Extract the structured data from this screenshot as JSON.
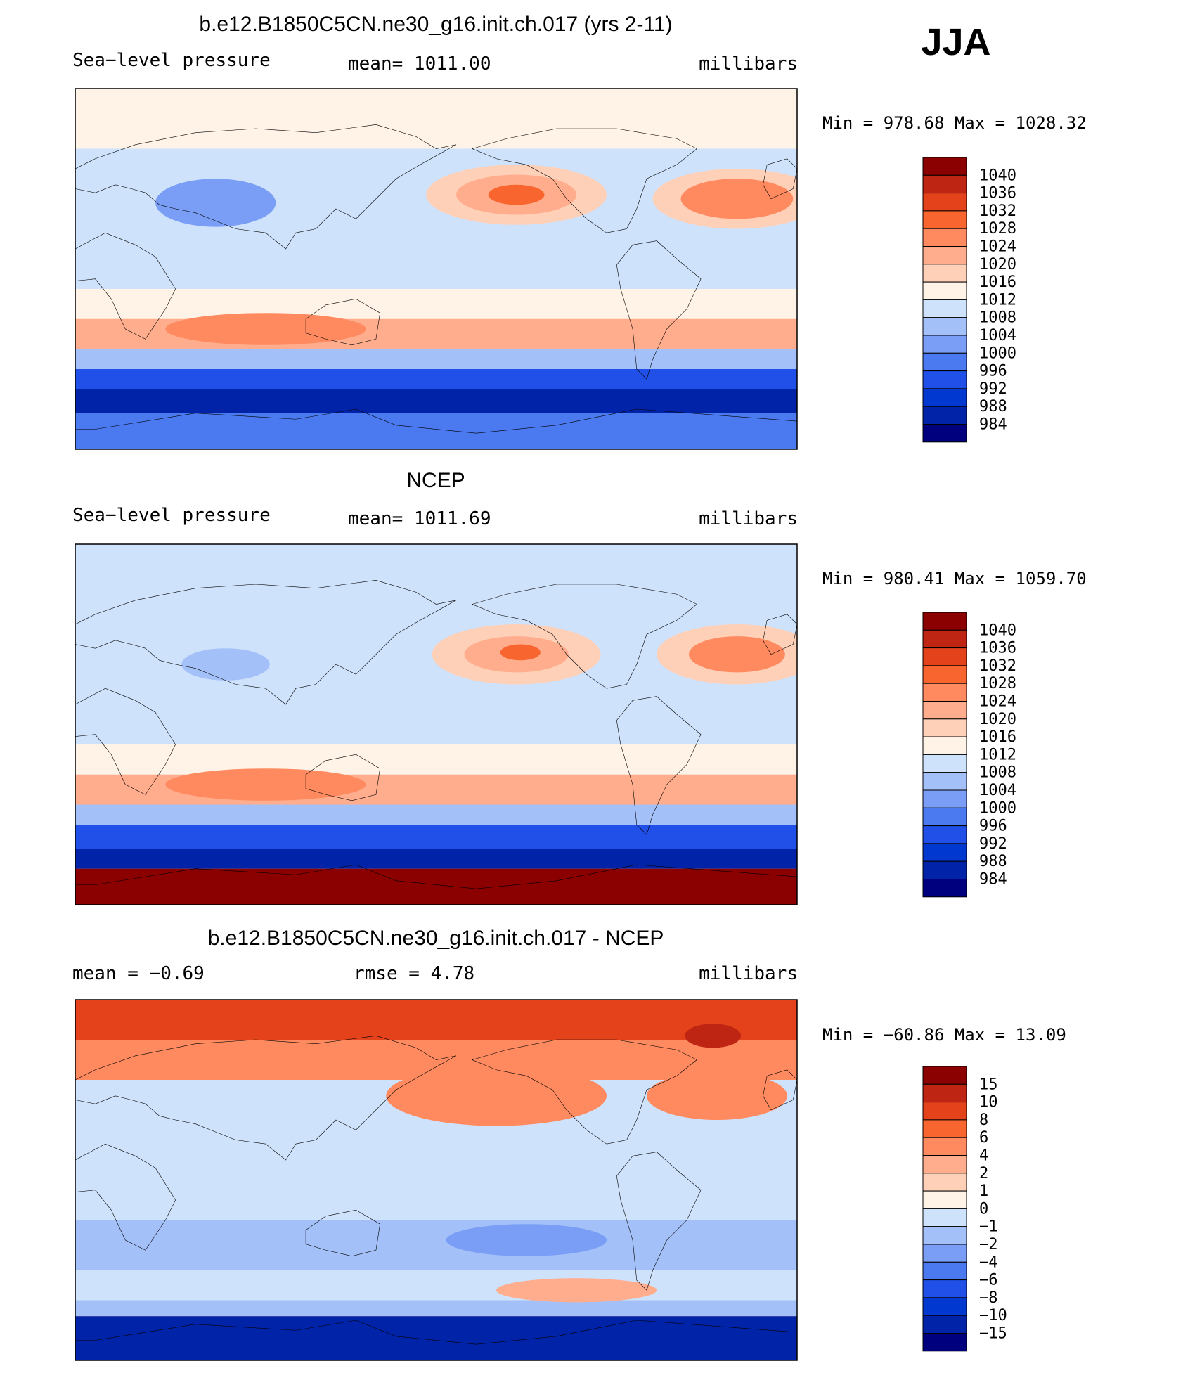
{
  "season": "JJA",
  "colors": {
    "scale": [
      "#00007f",
      "#0023a8",
      "#0038d0",
      "#2050e8",
      "#4b79f0",
      "#7a9ef5",
      "#a4c0f8",
      "#cfe2fb",
      "#fff2e6",
      "#ffd0b8",
      "#ffad8d",
      "#ff8a5f",
      "#f8652f",
      "#e4421b",
      "#bf2513",
      "#8b0000"
    ]
  },
  "chart_data": [
    {
      "type": "heatmap",
      "title": "b.e12.B1850C5CN.ne30_g16.init.ch.017 (yrs 2-11)",
      "variable": "Sea−level pressure",
      "stat_text": "mean=  1011.00",
      "units": "millibars",
      "min_max": "Min  =  978.68  Max  =  1028.32",
      "min": 978.68,
      "max": 1028.32,
      "levels": [
        "1040",
        "1036",
        "1032",
        "1028",
        "1024",
        "1020",
        "1016",
        "1012",
        "1008",
        "1004",
        "1000",
        "996",
        "992",
        "988",
        "984"
      ],
      "bands": [
        {
          "lat_top": 90,
          "lat_bottom": 60,
          "level": 1012
        },
        {
          "lat_top": 60,
          "lat_bottom": 25,
          "level": 1008
        },
        {
          "lat_top": 25,
          "lat_bottom": -10,
          "level": 1008
        },
        {
          "lat_top": -10,
          "lat_bottom": -25,
          "level": 1012
        },
        {
          "lat_top": -25,
          "lat_bottom": -40,
          "level": 1020
        },
        {
          "lat_top": -40,
          "lat_bottom": -50,
          "level": 1004
        },
        {
          "lat_top": -50,
          "lat_bottom": -60,
          "level": 992
        },
        {
          "lat_top": -60,
          "lat_bottom": -72,
          "level": 984
        },
        {
          "lat_top": -72,
          "lat_bottom": -90,
          "level": 996
        }
      ],
      "features": [
        {
          "lon": 220,
          "lat": 37,
          "rlon": 45,
          "rlat": 15,
          "level": 1016
        },
        {
          "lon": 220,
          "lat": 37,
          "rlon": 30,
          "rlat": 10,
          "level": 1020
        },
        {
          "lon": 220,
          "lat": 37,
          "rlon": 14,
          "rlat": 5,
          "level": 1028
        },
        {
          "lon": 330,
          "lat": 35,
          "rlon": 42,
          "rlat": 15,
          "level": 1016
        },
        {
          "lon": 330,
          "lat": 35,
          "rlon": 28,
          "rlat": 10,
          "level": 1024
        },
        {
          "lon": 70,
          "lat": 33,
          "rlon": 30,
          "rlat": 12,
          "level": 1000
        },
        {
          "lon": 95,
          "lat": -30,
          "rlon": 50,
          "rlat": 8,
          "level": 1024
        }
      ]
    },
    {
      "type": "heatmap",
      "title": "NCEP",
      "variable": "Sea−level pressure",
      "stat_text": "mean=  1011.69",
      "units": "millibars",
      "min_max": "Min  =  980.41  Max  =  1059.70",
      "min": 980.41,
      "max": 1059.7,
      "levels": [
        "1040",
        "1036",
        "1032",
        "1028",
        "1024",
        "1020",
        "1016",
        "1012",
        "1008",
        "1004",
        "1000",
        "996",
        "992",
        "988",
        "984"
      ],
      "bands": [
        {
          "lat_top": 90,
          "lat_bottom": 60,
          "level": 1008
        },
        {
          "lat_top": 60,
          "lat_bottom": 25,
          "level": 1008
        },
        {
          "lat_top": 25,
          "lat_bottom": -10,
          "level": 1008
        },
        {
          "lat_top": -10,
          "lat_bottom": -25,
          "level": 1012
        },
        {
          "lat_top": -25,
          "lat_bottom": -40,
          "level": 1020
        },
        {
          "lat_top": -40,
          "lat_bottom": -50,
          "level": 1004
        },
        {
          "lat_top": -50,
          "lat_bottom": -62,
          "level": 992
        },
        {
          "lat_top": -62,
          "lat_bottom": -72,
          "level": 984
        },
        {
          "lat_top": -72,
          "lat_bottom": -90,
          "level": 1040
        }
      ],
      "features": [
        {
          "lon": 220,
          "lat": 35,
          "rlon": 42,
          "rlat": 15,
          "level": 1016
        },
        {
          "lon": 220,
          "lat": 35,
          "rlon": 26,
          "rlat": 9,
          "level": 1020
        },
        {
          "lon": 222,
          "lat": 36,
          "rlon": 10,
          "rlat": 4,
          "level": 1028
        },
        {
          "lon": 330,
          "lat": 35,
          "rlon": 40,
          "rlat": 15,
          "level": 1016
        },
        {
          "lon": 330,
          "lat": 35,
          "rlon": 24,
          "rlat": 9,
          "level": 1024
        },
        {
          "lon": 75,
          "lat": 30,
          "rlon": 22,
          "rlat": 8,
          "level": 1004
        },
        {
          "lon": 95,
          "lat": -30,
          "rlon": 50,
          "rlat": 8,
          "level": 1024
        }
      ]
    },
    {
      "type": "heatmap",
      "title": "b.e12.B1850C5CN.ne30_g16.init.ch.017 - NCEP",
      "variable": "mean  =    −0.69",
      "stat_text": "rmse  =     4.78",
      "units": "millibars",
      "min_max": "Min  =  −60.86  Max  =    13.09",
      "min": -60.86,
      "max": 13.09,
      "mean": -0.69,
      "rmse": 4.78,
      "levels": [
        "15",
        "10",
        "8",
        "6",
        "4",
        "2",
        "1",
        "0",
        "−1",
        "−2",
        "−4",
        "−6",
        "−8",
        "−10",
        "−15"
      ],
      "bands": [
        {
          "lat_top": 90,
          "lat_bottom": 70,
          "level": 8
        },
        {
          "lat_top": 70,
          "lat_bottom": 50,
          "level": 4
        },
        {
          "lat_top": 50,
          "lat_bottom": 10,
          "level": -1
        },
        {
          "lat_top": 10,
          "lat_bottom": -20,
          "level": -1
        },
        {
          "lat_top": -20,
          "lat_bottom": -45,
          "level": -2
        },
        {
          "lat_top": -45,
          "lat_bottom": -60,
          "level": -1
        },
        {
          "lat_top": -60,
          "lat_bottom": -68,
          "level": -2
        },
        {
          "lat_top": -68,
          "lat_bottom": -90,
          "level": -15
        }
      ],
      "features": [
        {
          "lon": 210,
          "lat": 42,
          "rlon": 55,
          "rlat": 15,
          "level": 4
        },
        {
          "lon": 320,
          "lat": 42,
          "rlon": 35,
          "rlat": 12,
          "level": 4
        },
        {
          "lon": 318,
          "lat": 72,
          "rlon": 14,
          "rlat": 6,
          "level": 10
        },
        {
          "lon": 250,
          "lat": -55,
          "rlon": 40,
          "rlat": 6,
          "level": 2
        },
        {
          "lon": 225,
          "lat": -30,
          "rlon": 40,
          "rlat": 8,
          "level": -4
        }
      ]
    }
  ]
}
